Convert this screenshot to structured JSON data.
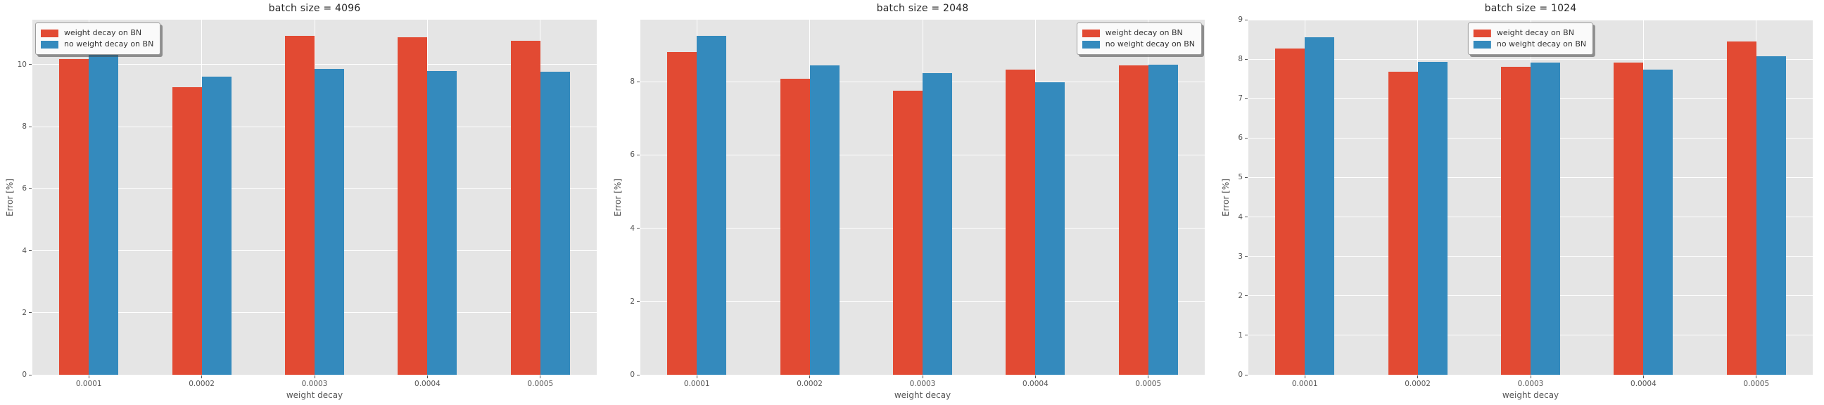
{
  "figure": {
    "xlabel": "weight decay",
    "ylabel": "Error [%]",
    "categories": [
      "0.0001",
      "0.0002",
      "0.0003",
      "0.0004",
      "0.0005"
    ],
    "legend_labels": [
      "weight decay on BN",
      "no weight decay on BN"
    ],
    "colors": {
      "weight_decay_on_bn": "#E24A33",
      "no_weight_decay_on_bn": "#348ABD",
      "plot_background": "#E5E5E5",
      "grid": "#FFFFFF",
      "tick_text": "#555555",
      "title_text": "#262626"
    }
  },
  "chart_data": [
    {
      "type": "bar",
      "title": "batch size = 4096",
      "xlabel": "weight decay",
      "ylabel": "Error [%]",
      "categories": [
        "0.0001",
        "0.0002",
        "0.0003",
        "0.0004",
        "0.0005"
      ],
      "series": [
        {
          "name": "weight decay on BN",
          "color": "#E24A33",
          "values": [
            10.18,
            9.28,
            10.93,
            10.88,
            10.78
          ]
        },
        {
          "name": "no weight decay on BN",
          "color": "#348ABD",
          "values": [
            10.34,
            9.62,
            9.87,
            9.8,
            9.78
          ]
        }
      ],
      "ylim": [
        0,
        11.45
      ],
      "yticks": [
        0,
        2,
        4,
        6,
        8,
        10
      ],
      "grid": true,
      "legend_position": "upper-left"
    },
    {
      "type": "bar",
      "title": "batch size = 2048",
      "xlabel": "weight decay",
      "ylabel": "Error [%]",
      "categories": [
        "0.0001",
        "0.0002",
        "0.0003",
        "0.0004",
        "0.0005"
      ],
      "series": [
        {
          "name": "weight decay on BN",
          "color": "#E24A33",
          "values": [
            8.81,
            8.08,
            7.75,
            8.33,
            8.45
          ]
        },
        {
          "name": "no weight decay on BN",
          "color": "#348ABD",
          "values": [
            9.25,
            8.44,
            8.23,
            7.98,
            8.47
          ]
        }
      ],
      "ylim": [
        0,
        9.69
      ],
      "yticks": [
        0,
        2,
        4,
        6,
        8
      ],
      "grid": true,
      "legend_position": "upper-right"
    },
    {
      "type": "bar",
      "title": "batch size = 1024",
      "xlabel": "weight decay",
      "ylabel": "Error [%]",
      "categories": [
        "0.0001",
        "0.0002",
        "0.0003",
        "0.0004",
        "0.0005"
      ],
      "series": [
        {
          "name": "weight decay on BN",
          "color": "#E24A33",
          "values": [
            8.27,
            7.68,
            7.81,
            7.91,
            8.44
          ]
        },
        {
          "name": "no weight decay on BN",
          "color": "#348ABD",
          "values": [
            8.55,
            7.93,
            7.91,
            7.73,
            8.07
          ]
        }
      ],
      "ylim": [
        0,
        9.0
      ],
      "yticks": [
        0,
        1,
        2,
        3,
        4,
        5,
        6,
        7,
        8,
        9
      ],
      "grid": true,
      "legend_position": "upper-center"
    }
  ]
}
